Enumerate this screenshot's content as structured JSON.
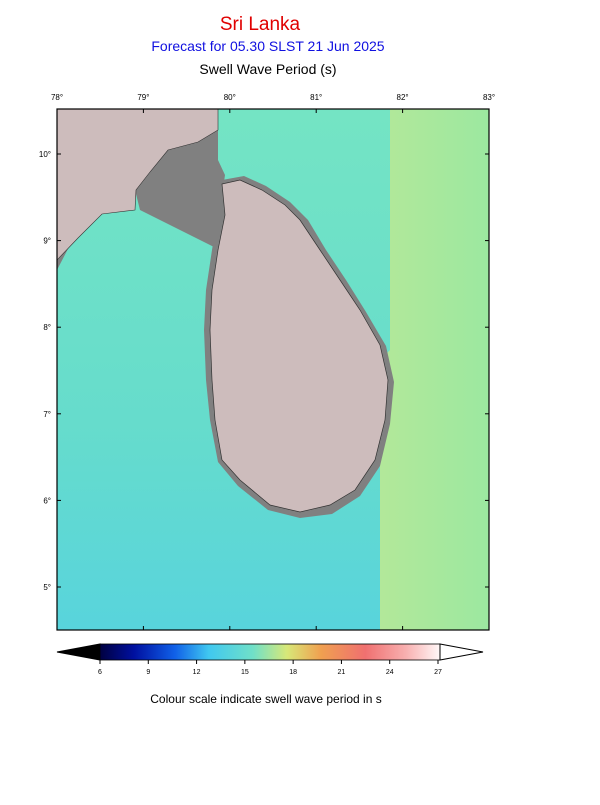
{
  "header": {
    "title": "Sri Lanka",
    "subtitle": "Forecast for  05.30 SLST 21 Jun 2025",
    "parameter": "Swell Wave Period (s)"
  },
  "map": {
    "lon_labels": [
      "78°",
      "79°",
      "80°",
      "81°",
      "82°",
      "83°"
    ],
    "lat_labels": [
      "10°",
      "9°",
      "8°",
      "7°",
      "6°",
      "5°"
    ]
  },
  "colorbar": {
    "ticks": [
      "6",
      "9",
      "12",
      "15",
      "18",
      "21",
      "24",
      "27"
    ],
    "caption": "Colour scale indicate swell wave period in s"
  }
}
